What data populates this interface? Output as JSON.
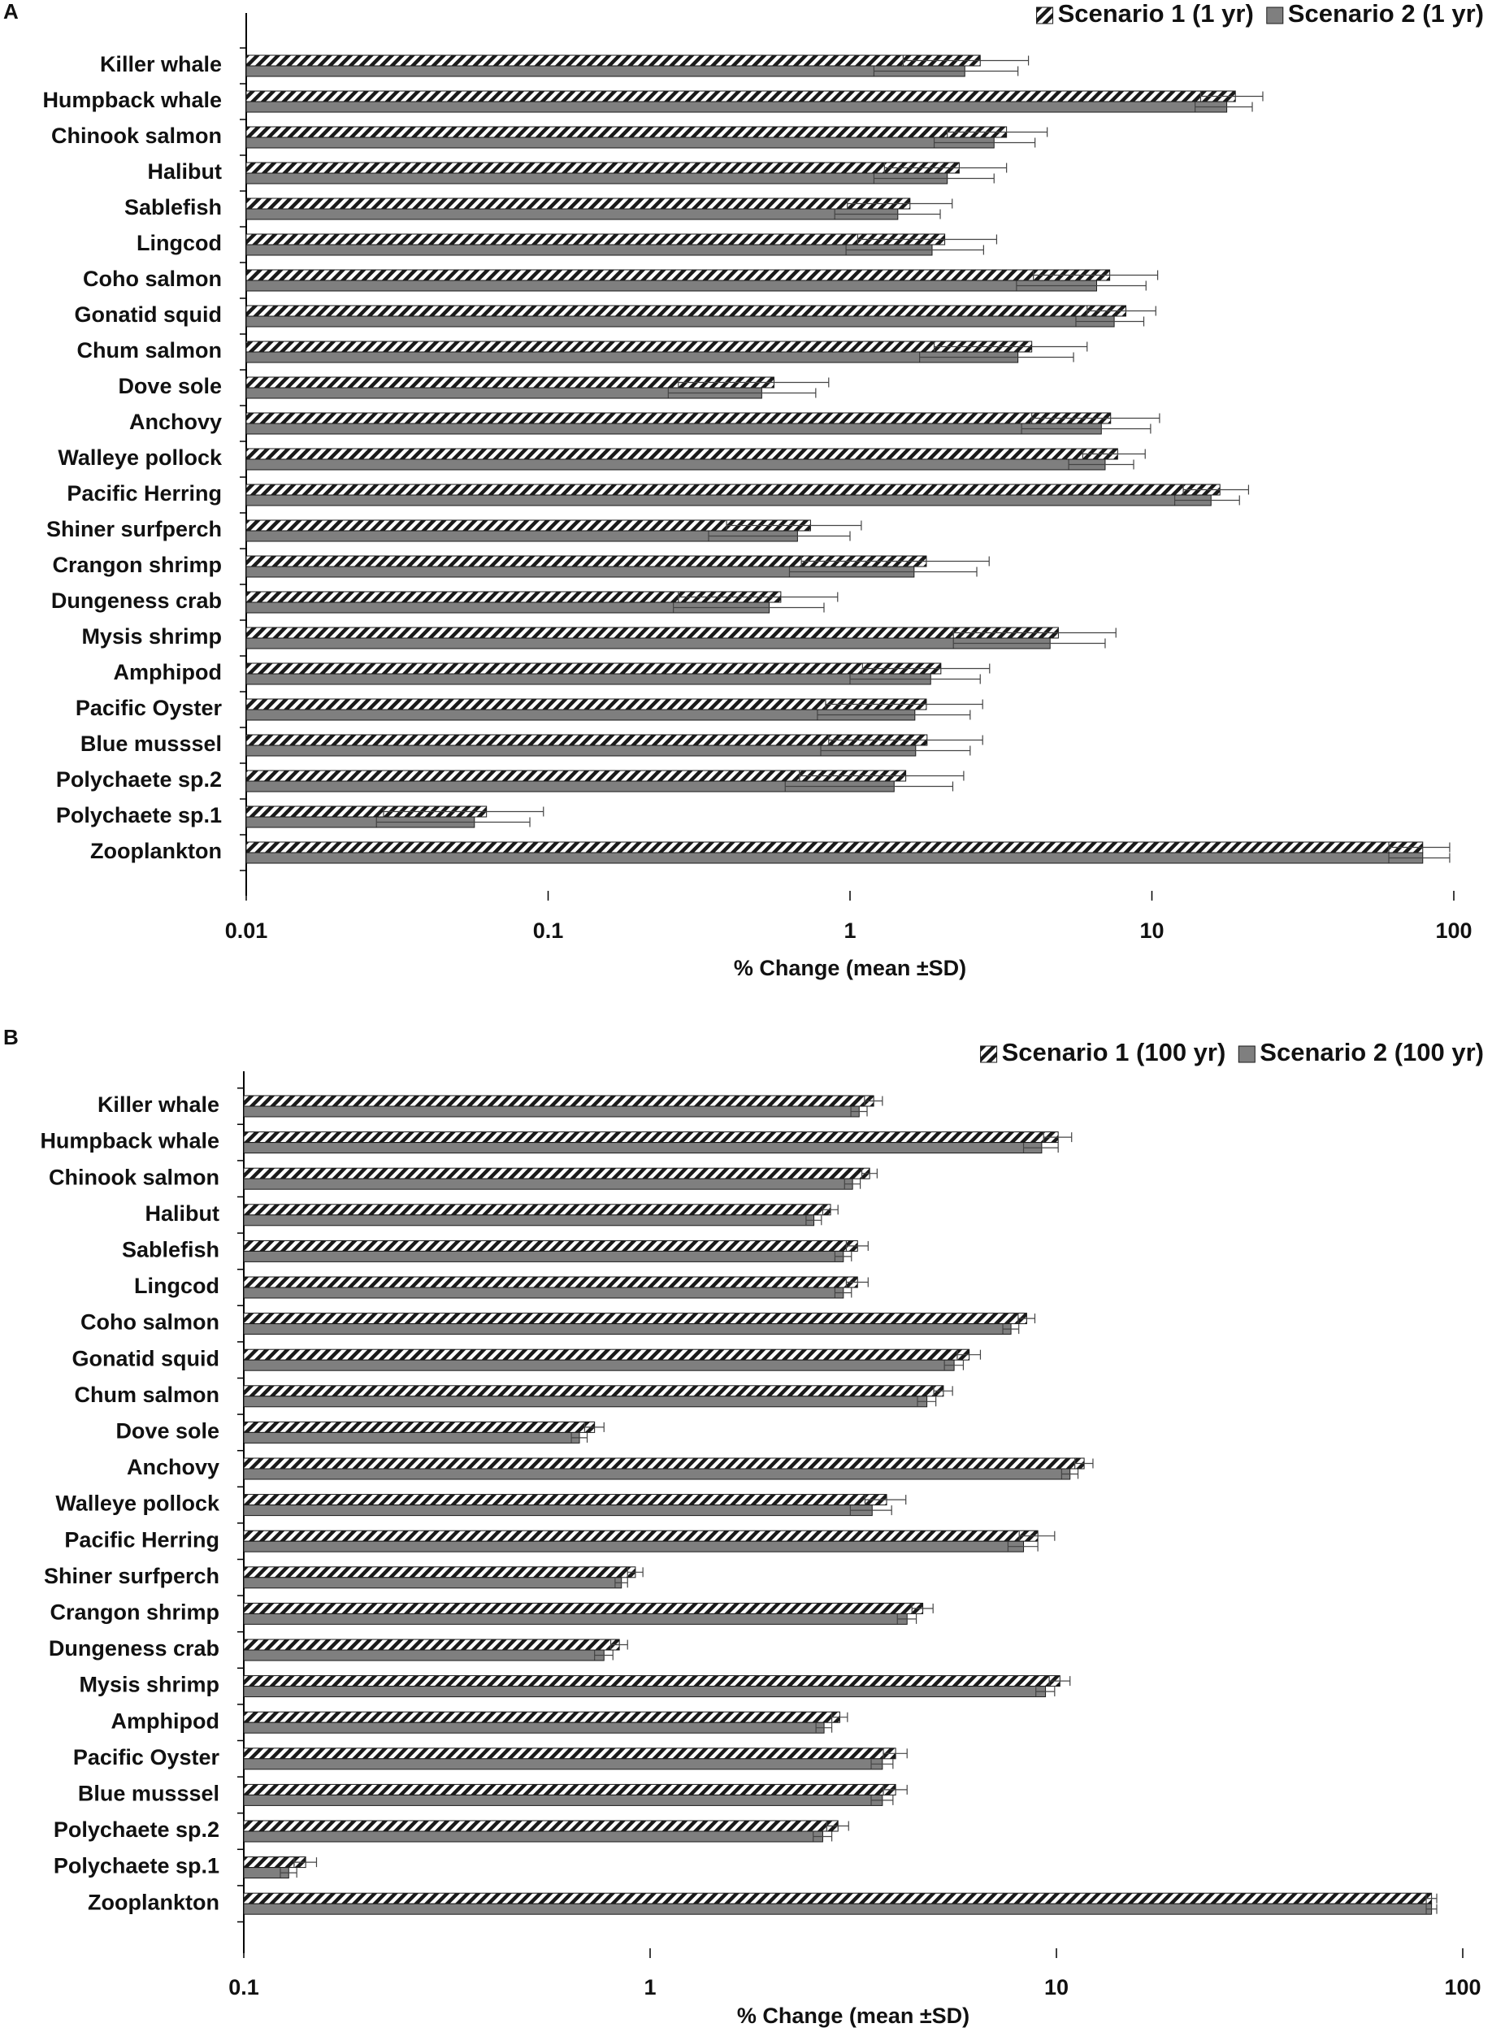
{
  "chart_data": [
    {
      "type": "bar",
      "orientation": "horizontal",
      "panel_label": "A",
      "x_label": "% Change (mean ±SD)",
      "xscale": "log",
      "xlim": [
        0.01,
        100
      ],
      "xticks": [
        0.01,
        0.1,
        1,
        10,
        100
      ],
      "legend_position": "upper right",
      "categories": [
        "Killer whale",
        "Humpback whale",
        "Chinook salmon",
        "Halibut",
        "Sablefish",
        "Lingcod",
        "Coho salmon",
        "Gonatid squid",
        "Chum salmon",
        "Dove sole",
        "Anchovy",
        "Walleye pollock",
        "Pacific Herring",
        "Shiner surfperch",
        "Crangon shrimp",
        "Dungeness crab",
        "Mysis shrimp",
        "Amphipod",
        "Pacific Oyster",
        "Blue musssel",
        "Polychaete sp.2",
        "Polychaete sp.1",
        "Zooplankton"
      ],
      "series": [
        {
          "name": "Scenario 1 (1 yr)",
          "color": "#1a1a1a",
          "pattern": "diagonal-hatch",
          "values": [
            2.7,
            18.9,
            3.3,
            2.3,
            1.58,
            2.06,
            7.25,
            8.2,
            4.0,
            0.56,
            7.3,
            7.7,
            16.8,
            0.74,
            1.79,
            0.59,
            4.9,
            2.0,
            1.79,
            1.8,
            1.53,
            0.0625,
            78.9
          ],
          "errors": [
            1.2,
            4.4,
            1.2,
            1.0,
            0.6,
            1.0,
            3.2,
            2.1,
            2.1,
            0.29,
            3.3,
            1.8,
            4.1,
            0.35,
            1.1,
            0.32,
            2.7,
            0.9,
            0.96,
            0.95,
            0.85,
            0.034,
            18
          ]
        },
        {
          "name": "Scenario 2 (1 yr)",
          "color": "#7f7f7f",
          "pattern": "solid",
          "values": [
            2.4,
            17.7,
            3.0,
            2.1,
            1.44,
            1.87,
            6.56,
            7.5,
            3.6,
            0.51,
            6.8,
            7.0,
            15.7,
            0.67,
            1.63,
            0.54,
            4.6,
            1.85,
            1.64,
            1.65,
            1.4,
            0.057,
            78.9
          ],
          "errors": [
            1.2,
            3.8,
            1.1,
            0.9,
            0.55,
            0.9,
            3.0,
            1.9,
            1.9,
            0.26,
            3.1,
            1.7,
            3.8,
            0.33,
            1.0,
            0.28,
            2.4,
            0.85,
            0.86,
            0.85,
            0.79,
            0.03,
            18
          ]
        }
      ]
    },
    {
      "type": "bar",
      "orientation": "horizontal",
      "panel_label": "B",
      "x_label": "% Change (mean ±SD)",
      "xscale": "log",
      "xlim": [
        0.1,
        100
      ],
      "xticks": [
        0.1,
        1,
        10,
        100
      ],
      "legend_position": "upper right",
      "categories": [
        "Killer whale",
        "Humpback whale",
        "Chinook salmon",
        "Halibut",
        "Sablefish",
        "Lingcod",
        "Coho salmon",
        "Gonatid squid",
        "Chum salmon",
        "Dove sole",
        "Anchovy",
        "Walleye pollock",
        "Pacific Herring",
        "Shiner surfperch",
        "Crangon shrimp",
        "Dungeness crab",
        "Mysis shrimp",
        "Amphipod",
        "Pacific Oyster",
        "Blue musssel",
        "Polychaete sp.2",
        "Polychaete sp.1",
        "Zooplankton"
      ],
      "series": [
        {
          "name": "Scenario 1 (100 yr)",
          "color": "#1a1a1a",
          "pattern": "diagonal-hatch",
          "values": [
            3.55,
            10.1,
            3.47,
            2.78,
            3.24,
            3.24,
            8.45,
            6.1,
            5.27,
            0.73,
            11.7,
            3.82,
            9.0,
            0.92,
            4.69,
            0.84,
            10.2,
            2.93,
            4.02,
            4.02,
            2.9,
            0.142,
            83.8
          ],
          "errors": [
            0.18,
            0.8,
            0.15,
            0.12,
            0.2,
            0.2,
            0.4,
            0.4,
            0.28,
            0.04,
            0.6,
            0.44,
            0.9,
            0.04,
            0.28,
            0.04,
            0.6,
            0.13,
            0.27,
            0.27,
            0.18,
            0.009,
            2.5
          ]
        },
        {
          "name": "Scenario 2 (100 yr)",
          "color": "#7f7f7f",
          "pattern": "solid",
          "values": [
            3.27,
            9.2,
            3.15,
            2.53,
            2.99,
            2.99,
            7.73,
            5.6,
            4.8,
            0.67,
            10.8,
            3.52,
            8.3,
            0.85,
            4.29,
            0.77,
            9.4,
            2.68,
            3.73,
            3.73,
            2.66,
            0.129,
            83.8
          ],
          "errors": [
            0.15,
            0.9,
            0.14,
            0.11,
            0.14,
            0.14,
            0.35,
            0.3,
            0.25,
            0.03,
            0.5,
            0.41,
            0.7,
            0.03,
            0.23,
            0.04,
            0.5,
            0.12,
            0.23,
            0.23,
            0.14,
            0.006,
            2.5
          ]
        }
      ]
    }
  ]
}
